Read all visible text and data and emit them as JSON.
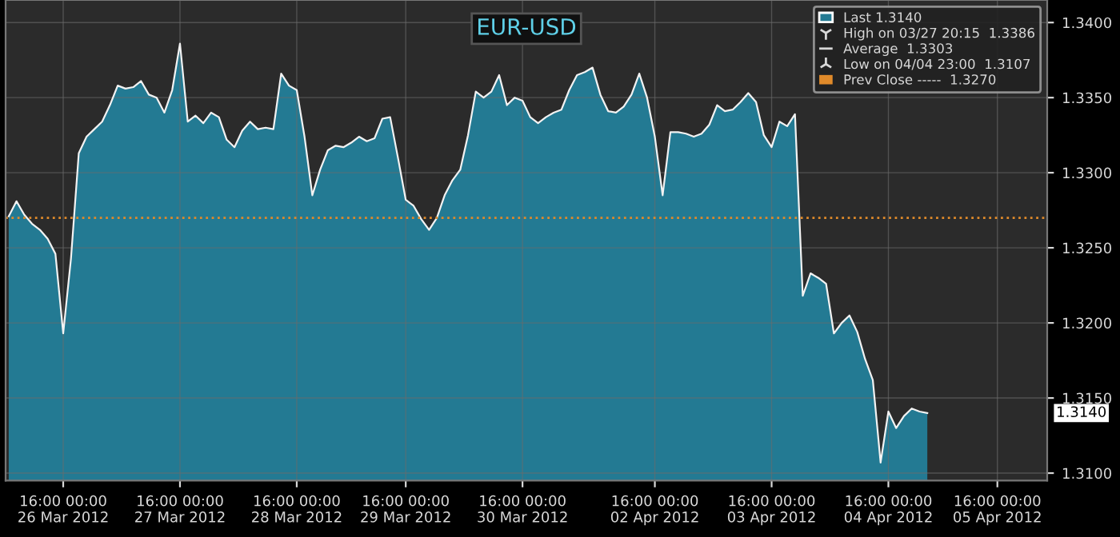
{
  "chart_data": {
    "type": "area",
    "title": "EUR-USD",
    "categories": [
      null,
      null,
      null,
      null,
      null,
      null,
      null,
      "16:00 00:00\n26 Mar 2012",
      null,
      null,
      null,
      null,
      null,
      null,
      null,
      null,
      null,
      null,
      null,
      null,
      null,
      null,
      "16:00 00:00\n27 Mar 2012",
      null,
      null,
      null,
      null,
      null,
      null,
      null,
      null,
      null,
      null,
      null,
      null,
      null,
      null,
      "16:00 00:00\n28 Mar 2012",
      null,
      null,
      null,
      null,
      null,
      null,
      null,
      null,
      null,
      null,
      null,
      null,
      null,
      "16:00 00:00\n29 Mar 2012",
      null,
      null,
      null,
      null,
      null,
      null,
      null,
      null,
      null,
      null,
      null,
      null,
      null,
      null,
      "16:00 00:00\n30 Mar 2012",
      null,
      null,
      null,
      null,
      null,
      null,
      null,
      null,
      null,
      null,
      null,
      null,
      null,
      null,
      null,
      null,
      "16:00 00:00\n02 Apr 2012",
      null,
      null,
      null,
      null,
      null,
      null,
      null,
      null,
      null,
      null,
      null,
      null,
      null,
      null,
      "16:00 00:00\n03 Apr 2012",
      null,
      null,
      null,
      null,
      null,
      null,
      null,
      null,
      null,
      null,
      null,
      null,
      null,
      null,
      "16:00 00:00\n04 Apr 2012",
      null,
      null,
      null,
      null,
      null,
      null,
      null,
      null,
      null,
      null,
      null,
      null,
      null,
      "16:00 00:00\n05 Apr 2012",
      null,
      null,
      null,
      null,
      null,
      null
    ],
    "series": [
      {
        "name": "Last 1.3140",
        "color": "#237a93",
        "values": [
          1.3271,
          1.3281,
          1.3272,
          1.3266,
          1.3262,
          1.3256,
          1.3246,
          1.3193,
          1.3243,
          1.3313,
          1.3324,
          1.3329,
          1.3334,
          1.3345,
          1.3358,
          1.3356,
          1.3357,
          1.3361,
          1.3352,
          1.335,
          1.334,
          1.3355,
          1.3386,
          1.3334,
          1.3338,
          1.3333,
          1.334,
          1.3337,
          1.3322,
          1.3317,
          1.3328,
          1.3334,
          1.3329,
          1.333,
          1.3329,
          1.3366,
          1.3358,
          1.3355,
          1.3324,
          1.3285,
          1.3302,
          1.3315,
          1.3318,
          1.3317,
          1.332,
          1.3324,
          1.3321,
          1.3323,
          1.3336,
          1.3337,
          1.331,
          1.3282,
          1.3278,
          1.3269,
          1.3262,
          1.327,
          1.3285,
          1.3295,
          1.3302,
          1.3325,
          1.3354,
          1.335,
          1.3354,
          1.3365,
          1.3345,
          1.335,
          1.3348,
          1.3337,
          1.3333,
          1.3337,
          1.334,
          1.3342,
          1.3355,
          1.3365,
          1.3367,
          1.337,
          1.3352,
          1.3341,
          1.334,
          1.3344,
          1.3352,
          1.3366,
          1.335,
          1.3324,
          1.3285,
          1.3327,
          1.3327,
          1.3326,
          1.3324,
          1.3326,
          1.3332,
          1.3345,
          1.3341,
          1.3342,
          1.3347,
          1.3353,
          1.3347,
          1.3325,
          1.3317,
          1.3334,
          1.3331,
          1.3339,
          1.3218,
          1.3233,
          1.323,
          1.3226,
          1.3193,
          1.32,
          1.3205,
          1.3194,
          1.3176,
          1.3162,
          1.3107,
          1.3141,
          1.313,
          1.3138,
          1.3143,
          1.3141,
          1.314,
          null,
          null,
          null,
          null,
          null,
          null,
          null,
          null,
          null,
          null,
          null,
          null,
          null,
          null,
          null
        ]
      }
    ],
    "ylim": [
      1.3095,
      1.3415
    ],
    "yticks": [
      {
        "value": 1.31,
        "label": "1.3100"
      },
      {
        "value": 1.315,
        "label": "1.3150"
      },
      {
        "value": 1.32,
        "label": "1.3200"
      },
      {
        "value": 1.325,
        "label": "1.3250"
      },
      {
        "value": 1.33,
        "label": "1.3300"
      },
      {
        "value": 1.335,
        "label": "1.3350"
      },
      {
        "value": 1.34,
        "label": "1.3400"
      }
    ],
    "ref_lines": [
      {
        "axis": "y",
        "value": 1.327,
        "label": "Prev Close -----  1.3270",
        "color": "#e08a2a",
        "line_style": "dotted"
      }
    ],
    "annotations": [
      "1.3140",
      "High on 03/27 20:15  1.3386",
      "Average  1.3303",
      "Low on 04/04 23:00  1.3107"
    ],
    "grid": true,
    "legend": "top right"
  }
}
